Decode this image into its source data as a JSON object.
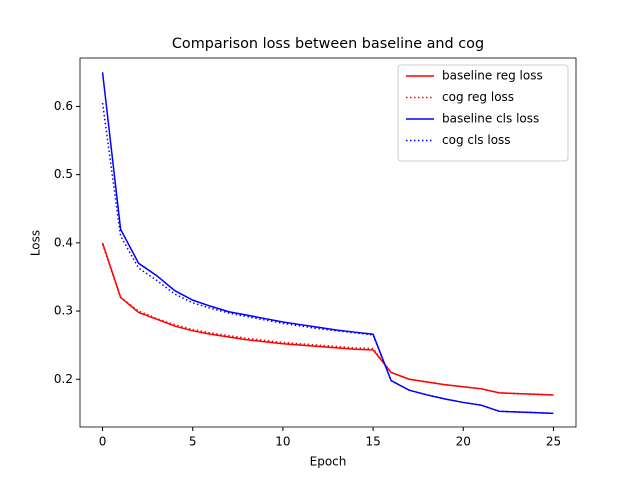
{
  "chart_data": {
    "type": "line",
    "title": "Comparison loss between baseline and cog",
    "xlabel": "Epoch",
    "ylabel": "Loss",
    "x": [
      0,
      1,
      2,
      3,
      4,
      5,
      6,
      7,
      8,
      9,
      10,
      11,
      12,
      13,
      14,
      15,
      16,
      17,
      18,
      19,
      20,
      21,
      22,
      23,
      24,
      25
    ],
    "series": [
      {
        "name": "baseline reg loss",
        "color": "#ff0000",
        "style": "solid",
        "values": [
          0.4,
          0.32,
          0.298,
          0.288,
          0.278,
          0.271,
          0.266,
          0.262,
          0.258,
          0.255,
          0.252,
          0.25,
          0.248,
          0.246,
          0.244,
          0.243,
          0.21,
          0.2,
          0.196,
          0.192,
          0.189,
          0.186,
          0.18,
          0.179,
          0.178,
          0.177
        ]
      },
      {
        "name": "cog reg loss",
        "color": "#ff0000",
        "style": "dotted",
        "values": [
          0.398,
          0.32,
          0.3,
          0.289,
          0.28,
          0.273,
          0.268,
          0.264,
          0.26,
          0.257,
          0.254,
          0.252,
          0.25,
          0.248,
          0.246,
          0.245,
          0.21,
          0.2,
          0.196,
          0.192,
          0.189,
          0.186,
          0.18,
          0.179,
          0.178,
          0.177
        ]
      },
      {
        "name": "baseline cls loss",
        "color": "#0000ff",
        "style": "solid",
        "values": [
          0.65,
          0.42,
          0.37,
          0.352,
          0.33,
          0.316,
          0.307,
          0.299,
          0.294,
          0.289,
          0.284,
          0.28,
          0.276,
          0.272,
          0.269,
          0.266,
          0.198,
          0.184,
          0.177,
          0.171,
          0.166,
          0.162,
          0.153,
          0.152,
          0.151,
          0.15
        ]
      },
      {
        "name": "cog cls loss",
        "color": "#0000ff",
        "style": "dotted",
        "values": [
          0.605,
          0.41,
          0.363,
          0.345,
          0.325,
          0.312,
          0.304,
          0.297,
          0.292,
          0.287,
          0.282,
          0.278,
          0.274,
          0.271,
          0.268,
          0.265,
          0.198,
          0.184,
          0.177,
          0.171,
          0.166,
          0.162,
          0.153,
          0.152,
          0.151,
          0.15
        ]
      }
    ],
    "xlim": [
      -1.25,
      26.25
    ],
    "xticks": [
      0,
      5,
      10,
      15,
      20,
      25
    ],
    "ylim": [
      0.13,
      0.671
    ],
    "yticks": [
      0.2,
      0.3,
      0.4,
      0.5,
      0.6
    ],
    "legend": "upper right",
    "grid": false
  }
}
